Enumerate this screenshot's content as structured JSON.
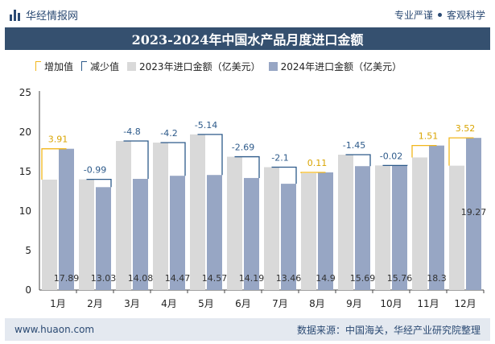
{
  "header": {
    "brand": "华经情报网",
    "tagline_left": "专业严谨",
    "tagline_right": "客观科学"
  },
  "title": "2023-2024年中国水产品月度进口金额",
  "legend": {
    "increase": "增加值",
    "decrease": "减少值",
    "y2023": "2023年进口金额（亿美元）",
    "y2024": "2024年进口金额（亿美元）"
  },
  "colors": {
    "bar2023": "#d9d9d9",
    "bar2024": "#97a6c4",
    "increase": "#f2b61b",
    "decrease": "#2d5a8a",
    "titlebar": "#35506f",
    "footer": "#e4e9f0"
  },
  "chart_data": {
    "type": "bar",
    "categories": [
      "1月",
      "2月",
      "3月",
      "4月",
      "5月",
      "6月",
      "7月",
      "8月",
      "9月",
      "10月",
      "11月",
      "12月"
    ],
    "series": [
      {
        "name": "2023年进口金额（亿美元）",
        "values": [
          13.98,
          14.02,
          18.88,
          18.67,
          19.71,
          16.88,
          15.56,
          14.79,
          17.14,
          15.78,
          16.79,
          15.75
        ]
      },
      {
        "name": "2024年进口金额（亿美元）",
        "values": [
          17.89,
          13.03,
          14.08,
          14.47,
          14.57,
          14.19,
          13.46,
          14.9,
          15.69,
          15.76,
          18.3,
          19.27
        ]
      }
    ],
    "changes": [
      3.91,
      -0.99,
      -4.8,
      -4.2,
      -5.14,
      -2.69,
      -2.1,
      0.11,
      -1.45,
      -0.02,
      1.51,
      3.52
    ],
    "change_labels": [
      "3.91",
      "-0.99",
      "-4.8",
      "-4.2",
      "-5.14",
      "-2.69",
      "-2.1",
      "0.11",
      "-1.45",
      "-0.02",
      "1.51",
      "3.52"
    ],
    "value_labels_2024": [
      "17.89",
      "13.03",
      "14.08",
      "14.47",
      "14.57",
      "14.19",
      "13.46",
      "14.9",
      "15.69",
      "15.76",
      "18.3",
      "19.27"
    ],
    "yticks": [
      0,
      5,
      10,
      15,
      20,
      25
    ],
    "ylim": [
      0,
      25
    ],
    "grid": false,
    "legend_position": "top-left"
  },
  "footer": {
    "url": "www.huaon.com",
    "source": "数据来源：中国海关，华经产业研究院整理"
  }
}
